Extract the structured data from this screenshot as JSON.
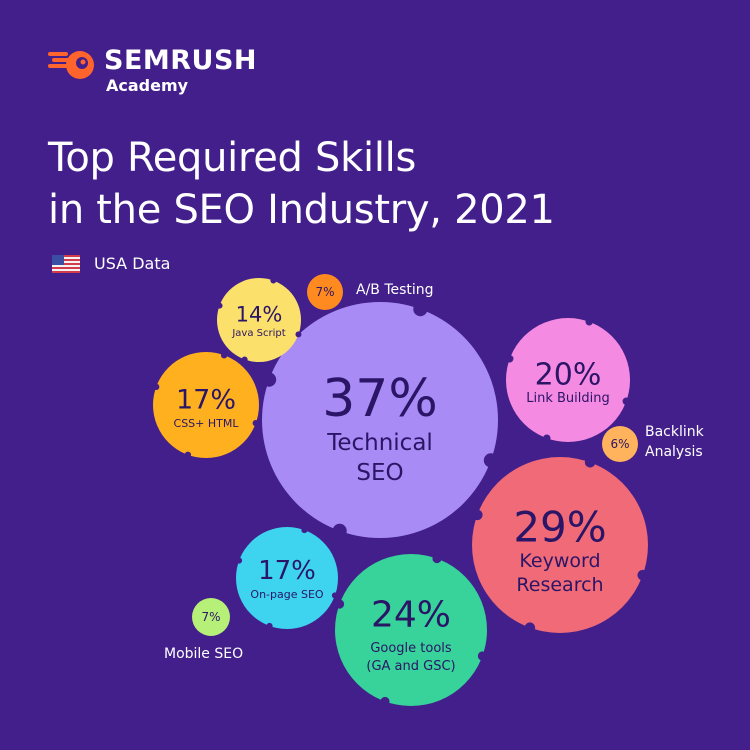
{
  "brand": {
    "name": "SEMRUSH",
    "sub": "Academy"
  },
  "title_lines": [
    "Top Required Skills",
    "in the SEO Industry, 2021"
  ],
  "region_label": "USA Data",
  "colors": {
    "background": "#431f8c",
    "technical_seo": "#a88bf5",
    "keyword_research": "#f06a78",
    "google_tools": "#37d39a",
    "link_building": "#f58ae2",
    "css_html": "#ffb01f",
    "on_page_seo": "#3ed4f0",
    "java_script": "#fbe06c",
    "ab_testing": "#ff8a1f",
    "backlink_analysis": "#ffb35c",
    "mobile_seo": "#b6f079",
    "brand_orange": "#ff642d"
  },
  "chart_data": {
    "type": "bubble",
    "unit": "%",
    "items": [
      {
        "label": "Technical SEO",
        "value": 37,
        "color": "#a88bf5"
      },
      {
        "label": "Keyword Research",
        "value": 29,
        "color": "#f06a78"
      },
      {
        "label": "Google tools (GA and GSC)",
        "value": 24,
        "color": "#37d39a"
      },
      {
        "label": "Link Building",
        "value": 20,
        "color": "#f58ae2"
      },
      {
        "label": "CSS+ HTML",
        "value": 17,
        "color": "#ffb01f"
      },
      {
        "label": "On-page SEO",
        "value": 17,
        "color": "#3ed4f0"
      },
      {
        "label": "Java Script",
        "value": 14,
        "color": "#fbe06c"
      },
      {
        "label": "A/B Testing",
        "value": 7,
        "color": "#ff8a1f"
      },
      {
        "label": "Backlink Analysis",
        "value": 6,
        "color": "#ffb35c"
      },
      {
        "label": "Mobile SEO",
        "value": 7,
        "color": "#b6f079"
      }
    ]
  }
}
